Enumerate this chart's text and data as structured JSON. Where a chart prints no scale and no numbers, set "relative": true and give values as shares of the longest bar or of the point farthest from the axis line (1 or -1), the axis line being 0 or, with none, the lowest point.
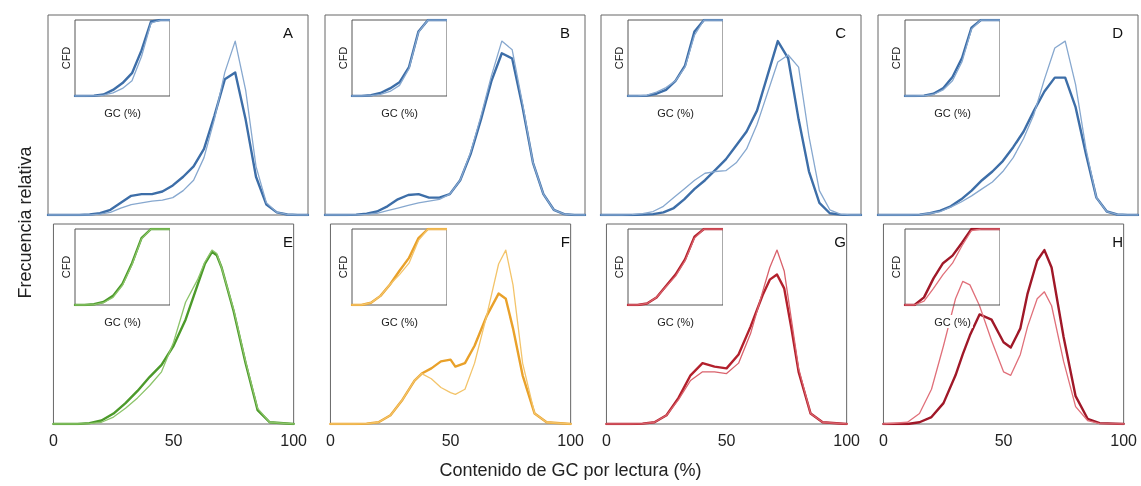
{
  "chart_data": [
    {
      "type": "line",
      "title": "A",
      "ylabel": "Frecuencia relativa",
      "annotations": [
        "Contenido de GC por lectura (%)"
      ],
      "relative": true,
      "tick_labels": false,
      "grid": false,
      "marker": "none",
      "line_style": "solid",
      "categories": [
        null,
        null,
        null,
        null,
        null,
        null,
        null,
        null,
        null,
        null,
        null,
        null,
        null,
        null,
        null,
        null,
        null,
        null,
        null,
        null,
        null,
        null,
        null,
        null,
        null,
        null
      ],
      "series": [
        {
          "color": "#3d6ea8",
          "values": [
            0,
            0,
            0,
            0,
            0.003,
            0.01,
            0.03,
            0.07,
            0.11,
            0.12,
            0.12,
            0.135,
            0.17,
            0.22,
            0.28,
            0.38,
            0.57,
            0.78,
            0.82,
            0.55,
            0.22,
            0.06,
            0.015,
            0.003,
            0,
            0
          ]
        },
        {
          "color": "#87a8cf",
          "values": [
            0,
            0,
            0,
            0,
            0,
            0.005,
            0.015,
            0.04,
            0.06,
            0.07,
            0.08,
            0.085,
            0.1,
            0.14,
            0.2,
            0.33,
            0.55,
            0.82,
            1,
            0.72,
            0.28,
            0.07,
            0.015,
            0.003,
            0,
            0
          ]
        }
      ]
    },
    {
      "type": "line",
      "xlabel": "GC (%)",
      "ylabel": "CFD",
      "relative": true,
      "categories": [
        null,
        null,
        null,
        null,
        null,
        null,
        null,
        null,
        null,
        null,
        null
      ],
      "series": [
        {
          "color": "#3d6ea8",
          "values": [
            0,
            0,
            0.003,
            0.02,
            0.08,
            0.17,
            0.3,
            0.6,
            0.98,
            1,
            1
          ]
        },
        {
          "color": "#87a8cf",
          "values": [
            0,
            0,
            0.001,
            0.01,
            0.04,
            0.1,
            0.2,
            0.52,
            0.96,
            1,
            1
          ]
        }
      ]
    },
    {
      "type": "line",
      "title": "B",
      "relative": true,
      "tick_labels": false,
      "grid": false,
      "marker": "none",
      "line_style": "solid",
      "categories": [
        null,
        null,
        null,
        null,
        null,
        null,
        null,
        null,
        null,
        null,
        null,
        null,
        null,
        null,
        null,
        null,
        null,
        null,
        null,
        null,
        null,
        null,
        null,
        null,
        null,
        null
      ],
      "series": [
        {
          "color": "#3d6ea8",
          "values": [
            0,
            0,
            0,
            0.002,
            0.008,
            0.02,
            0.05,
            0.09,
            0.115,
            0.12,
            0.1,
            0.1,
            0.12,
            0.2,
            0.35,
            0.55,
            0.77,
            0.93,
            0.9,
            0.62,
            0.3,
            0.12,
            0.03,
            0.005,
            0,
            0
          ]
        },
        {
          "color": "#87a8cf",
          "values": [
            0,
            0,
            0,
            0.001,
            0.004,
            0.01,
            0.025,
            0.04,
            0.055,
            0.07,
            0.08,
            0.09,
            0.12,
            0.2,
            0.36,
            0.57,
            0.8,
            1,
            0.95,
            0.64,
            0.3,
            0.12,
            0.03,
            0.005,
            0,
            0
          ]
        }
      ]
    },
    {
      "type": "line",
      "xlabel": "GC (%)",
      "ylabel": "CFD",
      "relative": true,
      "categories": [
        null,
        null,
        null,
        null,
        null,
        null,
        null,
        null,
        null,
        null,
        null
      ],
      "series": [
        {
          "color": "#3d6ea8",
          "values": [
            0,
            0,
            0.01,
            0.04,
            0.1,
            0.18,
            0.38,
            0.85,
            1,
            1,
            1
          ]
        },
        {
          "color": "#87a8cf",
          "values": [
            0,
            0,
            0.004,
            0.02,
            0.06,
            0.14,
            0.36,
            0.84,
            1,
            1,
            1
          ]
        }
      ]
    },
    {
      "type": "line",
      "title": "C",
      "relative": true,
      "tick_labels": false,
      "grid": false,
      "marker": "none",
      "line_style": "solid",
      "categories": [
        null,
        null,
        null,
        null,
        null,
        null,
        null,
        null,
        null,
        null,
        null,
        null,
        null,
        null,
        null,
        null,
        null,
        null,
        null,
        null,
        null,
        null,
        null,
        null,
        null,
        null
      ],
      "series": [
        {
          "color": "#3d6ea8",
          "values": [
            0,
            0,
            0,
            0,
            0.002,
            0.005,
            0.015,
            0.04,
            0.09,
            0.15,
            0.2,
            0.26,
            0.32,
            0.4,
            0.48,
            0.6,
            0.8,
            1,
            0.9,
            0.55,
            0.25,
            0.07,
            0.01,
            0.002,
            0,
            0
          ]
        },
        {
          "color": "#87a8cf",
          "values": [
            0,
            0,
            0,
            0.002,
            0.008,
            0.02,
            0.05,
            0.1,
            0.15,
            0.2,
            0.24,
            0.25,
            0.255,
            0.3,
            0.38,
            0.52,
            0.7,
            0.88,
            0.92,
            0.85,
            0.45,
            0.14,
            0.03,
            0.005,
            0,
            0
          ]
        }
      ]
    },
    {
      "type": "line",
      "xlabel": "GC (%)",
      "ylabel": "CFD",
      "relative": true,
      "categories": [
        null,
        null,
        null,
        null,
        null,
        null,
        null,
        null,
        null,
        null,
        null
      ],
      "series": [
        {
          "color": "#3d6ea8",
          "values": [
            0,
            0,
            0.005,
            0.03,
            0.08,
            0.2,
            0.4,
            0.85,
            1,
            1,
            1
          ]
        },
        {
          "color": "#87a8cf",
          "values": [
            0,
            0,
            0.01,
            0.05,
            0.11,
            0.2,
            0.38,
            0.8,
            1,
            1,
            1
          ]
        }
      ]
    },
    {
      "type": "line",
      "title": "D",
      "relative": true,
      "tick_labels": false,
      "grid": false,
      "marker": "none",
      "line_style": "solid",
      "categories": [
        null,
        null,
        null,
        null,
        null,
        null,
        null,
        null,
        null,
        null,
        null,
        null,
        null,
        null,
        null,
        null,
        null,
        null,
        null,
        null,
        null,
        null,
        null,
        null,
        null,
        null
      ],
      "series": [
        {
          "color": "#3d6ea8",
          "values": [
            0,
            0,
            0,
            0,
            0.002,
            0.01,
            0.025,
            0.05,
            0.09,
            0.14,
            0.2,
            0.25,
            0.31,
            0.39,
            0.48,
            0.6,
            0.71,
            0.79,
            0.79,
            0.62,
            0.35,
            0.1,
            0.02,
            0.003,
            0,
            0
          ]
        },
        {
          "color": "#87a8cf",
          "values": [
            0,
            0,
            0,
            0,
            0.002,
            0.01,
            0.02,
            0.045,
            0.075,
            0.11,
            0.15,
            0.19,
            0.25,
            0.33,
            0.44,
            0.58,
            0.78,
            0.96,
            1,
            0.75,
            0.38,
            0.1,
            0.02,
            0.003,
            0,
            0
          ]
        }
      ]
    },
    {
      "type": "line",
      "xlabel": "GC (%)",
      "ylabel": "CFD",
      "relative": true,
      "categories": [
        null,
        null,
        null,
        null,
        null,
        null,
        null,
        null,
        null,
        null,
        null
      ],
      "series": [
        {
          "color": "#3d6ea8",
          "values": [
            0,
            0,
            0.005,
            0.03,
            0.1,
            0.25,
            0.5,
            0.9,
            1,
            1,
            1
          ]
        },
        {
          "color": "#87a8cf",
          "values": [
            0,
            0,
            0.003,
            0.02,
            0.08,
            0.2,
            0.45,
            0.88,
            1,
            1,
            1
          ]
        }
      ]
    },
    {
      "type": "line",
      "title": "E",
      "relative": true,
      "xlim": [
        0,
        100
      ],
      "xticks": [
        0,
        50,
        100
      ],
      "tick_labels": "x",
      "grid": false,
      "marker": "none",
      "line_style": "solid",
      "x": [
        0,
        10,
        15,
        20,
        25,
        30,
        35,
        40,
        45,
        50,
        55,
        60,
        63,
        66,
        68,
        70,
        75,
        80,
        85,
        90,
        100
      ],
      "series": [
        {
          "color": "#4c9a2a",
          "values": [
            0,
            0,
            0.005,
            0.02,
            0.06,
            0.12,
            0.19,
            0.27,
            0.34,
            0.45,
            0.6,
            0.8,
            0.92,
            0.99,
            0.97,
            0.9,
            0.65,
            0.35,
            0.08,
            0.01,
            0
          ]
        },
        {
          "color": "#8cc46a",
          "values": [
            0,
            0,
            0.002,
            0.01,
            0.04,
            0.09,
            0.15,
            0.22,
            0.3,
            0.47,
            0.7,
            0.83,
            0.93,
            1,
            0.98,
            0.9,
            0.66,
            0.36,
            0.09,
            0.01,
            0
          ]
        }
      ]
    },
    {
      "type": "line",
      "xlabel": "GC (%)",
      "ylabel": "CFD",
      "relative": true,
      "categories": [
        null,
        null,
        null,
        null,
        null,
        null,
        null,
        null,
        null,
        null,
        null
      ],
      "series": [
        {
          "color": "#4c9a2a",
          "values": [
            0,
            0,
            0.01,
            0.04,
            0.12,
            0.28,
            0.55,
            0.88,
            1,
            1,
            1
          ]
        },
        {
          "color": "#8cc46a",
          "values": [
            0,
            0,
            0.005,
            0.03,
            0.1,
            0.26,
            0.53,
            0.87,
            1,
            1,
            1
          ]
        }
      ]
    },
    {
      "type": "line",
      "title": "F",
      "relative": true,
      "xlim": [
        0,
        100
      ],
      "xticks": [
        0,
        50,
        100
      ],
      "tick_labels": "x",
      "grid": false,
      "marker": "none",
      "line_style": "solid",
      "x": [
        0,
        10,
        15,
        20,
        25,
        30,
        35,
        38,
        42,
        46,
        50,
        52,
        56,
        60,
        65,
        70,
        73,
        76,
        80,
        85,
        90,
        100
      ],
      "series": [
        {
          "color": "#e9a12a",
          "values": [
            0,
            0,
            0.002,
            0.01,
            0.05,
            0.14,
            0.25,
            0.29,
            0.32,
            0.36,
            0.37,
            0.33,
            0.35,
            0.45,
            0.62,
            0.75,
            0.72,
            0.55,
            0.28,
            0.06,
            0.01,
            0
          ]
        },
        {
          "color": "#f3c46a",
          "values": [
            0,
            0,
            0.002,
            0.01,
            0.05,
            0.14,
            0.25,
            0.29,
            0.26,
            0.21,
            0.18,
            0.17,
            0.2,
            0.35,
            0.62,
            0.92,
            1,
            0.8,
            0.35,
            0.06,
            0.01,
            0
          ]
        }
      ]
    },
    {
      "type": "line",
      "xlabel": "GC (%)",
      "ylabel": "CFD",
      "relative": true,
      "categories": [
        null,
        null,
        null,
        null,
        null,
        null,
        null,
        null,
        null,
        null,
        null
      ],
      "series": [
        {
          "color": "#e9a12a",
          "values": [
            0,
            0,
            0.03,
            0.12,
            0.27,
            0.45,
            0.62,
            0.88,
            1,
            1,
            1
          ]
        },
        {
          "color": "#f3c46a",
          "values": [
            0,
            0,
            0.03,
            0.12,
            0.27,
            0.4,
            0.55,
            0.85,
            1,
            1,
            1
          ]
        }
      ]
    },
    {
      "type": "line",
      "title": "G",
      "relative": true,
      "xlim": [
        0,
        100
      ],
      "xticks": [
        0,
        50,
        100
      ],
      "tick_labels": "x",
      "grid": false,
      "marker": "none",
      "line_style": "solid",
      "x": [
        0,
        10,
        15,
        20,
        25,
        30,
        35,
        40,
        45,
        50,
        55,
        60,
        65,
        68,
        71,
        74,
        77,
        80,
        85,
        90,
        100
      ],
      "series": [
        {
          "color": "#b3202c",
          "values": [
            0,
            0,
            0.002,
            0.01,
            0.05,
            0.15,
            0.28,
            0.35,
            0.33,
            0.32,
            0.4,
            0.56,
            0.74,
            0.83,
            0.86,
            0.78,
            0.55,
            0.3,
            0.06,
            0.01,
            0
          ]
        },
        {
          "color": "#d9626c",
          "values": [
            0,
            0,
            0.002,
            0.01,
            0.05,
            0.14,
            0.25,
            0.3,
            0.3,
            0.29,
            0.35,
            0.52,
            0.76,
            0.9,
            1,
            0.88,
            0.6,
            0.32,
            0.06,
            0.01,
            0
          ]
        }
      ]
    },
    {
      "type": "line",
      "xlabel": "GC (%)",
      "ylabel": "CFD",
      "relative": true,
      "categories": [
        null,
        null,
        null,
        null,
        null,
        null,
        null,
        null,
        null,
        null,
        null
      ],
      "series": [
        {
          "color": "#b3202c",
          "values": [
            0,
            0,
            0.02,
            0.1,
            0.25,
            0.4,
            0.6,
            0.9,
            1,
            1,
            1
          ]
        },
        {
          "color": "#d9626c",
          "values": [
            0,
            0,
            0.02,
            0.1,
            0.24,
            0.38,
            0.58,
            0.88,
            1,
            1,
            1
          ]
        }
      ]
    },
    {
      "type": "line",
      "title": "H",
      "relative": true,
      "xlim": [
        0,
        100
      ],
      "xticks": [
        0,
        50,
        100
      ],
      "tick_labels": "x",
      "grid": false,
      "marker": "none",
      "line_style": "solid",
      "x": [
        0,
        10,
        15,
        20,
        25,
        30,
        33,
        36,
        40,
        45,
        50,
        53,
        57,
        60,
        64,
        67,
        70,
        75,
        80,
        85,
        90,
        100
      ],
      "series": [
        {
          "color": "#a01828",
          "values": [
            0,
            0,
            0.01,
            0.04,
            0.12,
            0.28,
            0.4,
            0.51,
            0.63,
            0.6,
            0.47,
            0.44,
            0.55,
            0.75,
            0.94,
            1,
            0.9,
            0.5,
            0.16,
            0.03,
            0.005,
            0
          ]
        },
        {
          "color": "#e0707a",
          "values": [
            0,
            0.01,
            0.06,
            0.2,
            0.45,
            0.72,
            0.82,
            0.8,
            0.68,
            0.48,
            0.3,
            0.28,
            0.4,
            0.56,
            0.72,
            0.76,
            0.68,
            0.36,
            0.1,
            0.02,
            0.002,
            0
          ]
        }
      ]
    },
    {
      "type": "line",
      "xlabel": "GC (%)",
      "ylabel": "CFD",
      "relative": true,
      "categories": [
        null,
        null,
        null,
        null,
        null,
        null,
        null,
        null,
        null,
        null,
        null
      ],
      "series": [
        {
          "color": "#a01828",
          "values": [
            0,
            0,
            0.1,
            0.35,
            0.55,
            0.65,
            0.82,
            1,
            1,
            1,
            1
          ]
        },
        {
          "color": "#e0707a",
          "values": [
            0,
            0,
            0.05,
            0.22,
            0.4,
            0.55,
            0.78,
            0.98,
            1,
            1,
            1
          ]
        }
      ]
    }
  ]
}
